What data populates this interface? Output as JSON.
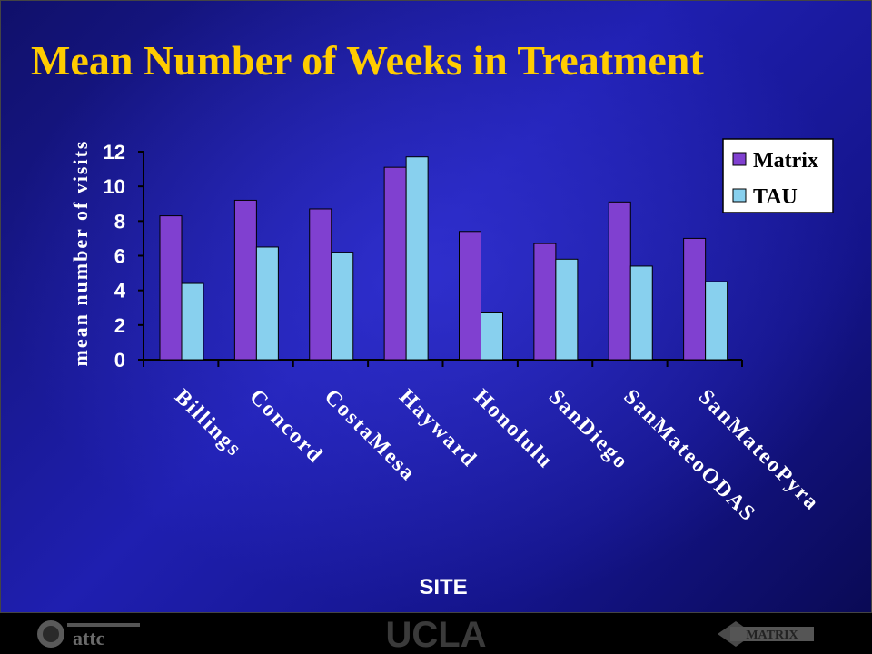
{
  "slide": {
    "title": "Mean Number of Weeks in Treatment"
  },
  "chart_data": {
    "type": "bar",
    "title": "Mean Number of Weeks in Treatment",
    "xlabel": "SITE",
    "ylabel": "mean number of visits",
    "ylim": [
      0,
      12
    ],
    "yticks": [
      0,
      2,
      4,
      6,
      8,
      10,
      12
    ],
    "categories": [
      "Billings",
      "Concord",
      "CostaMesa",
      "Hayward",
      "Honolulu",
      "SanDiego",
      "SanMateoODAS",
      "SanMateoPyra"
    ],
    "series": [
      {
        "name": "Matrix",
        "color": "#8040d0",
        "values": [
          8.3,
          9.2,
          8.7,
          11.1,
          7.4,
          6.7,
          9.1,
          7.0
        ]
      },
      {
        "name": "TAU",
        "color": "#88d0ee",
        "values": [
          4.4,
          6.5,
          6.2,
          11.7,
          2.7,
          5.8,
          5.4,
          4.5
        ]
      }
    ],
    "grid": false,
    "legend_position": "top-right"
  },
  "footer": {
    "logos": [
      "attc-logo",
      "ucla-logo",
      "matrix-institute-logo"
    ],
    "ucla_text": "UCLA",
    "attc_text": "attc",
    "matrix_text": "MATRIX"
  }
}
